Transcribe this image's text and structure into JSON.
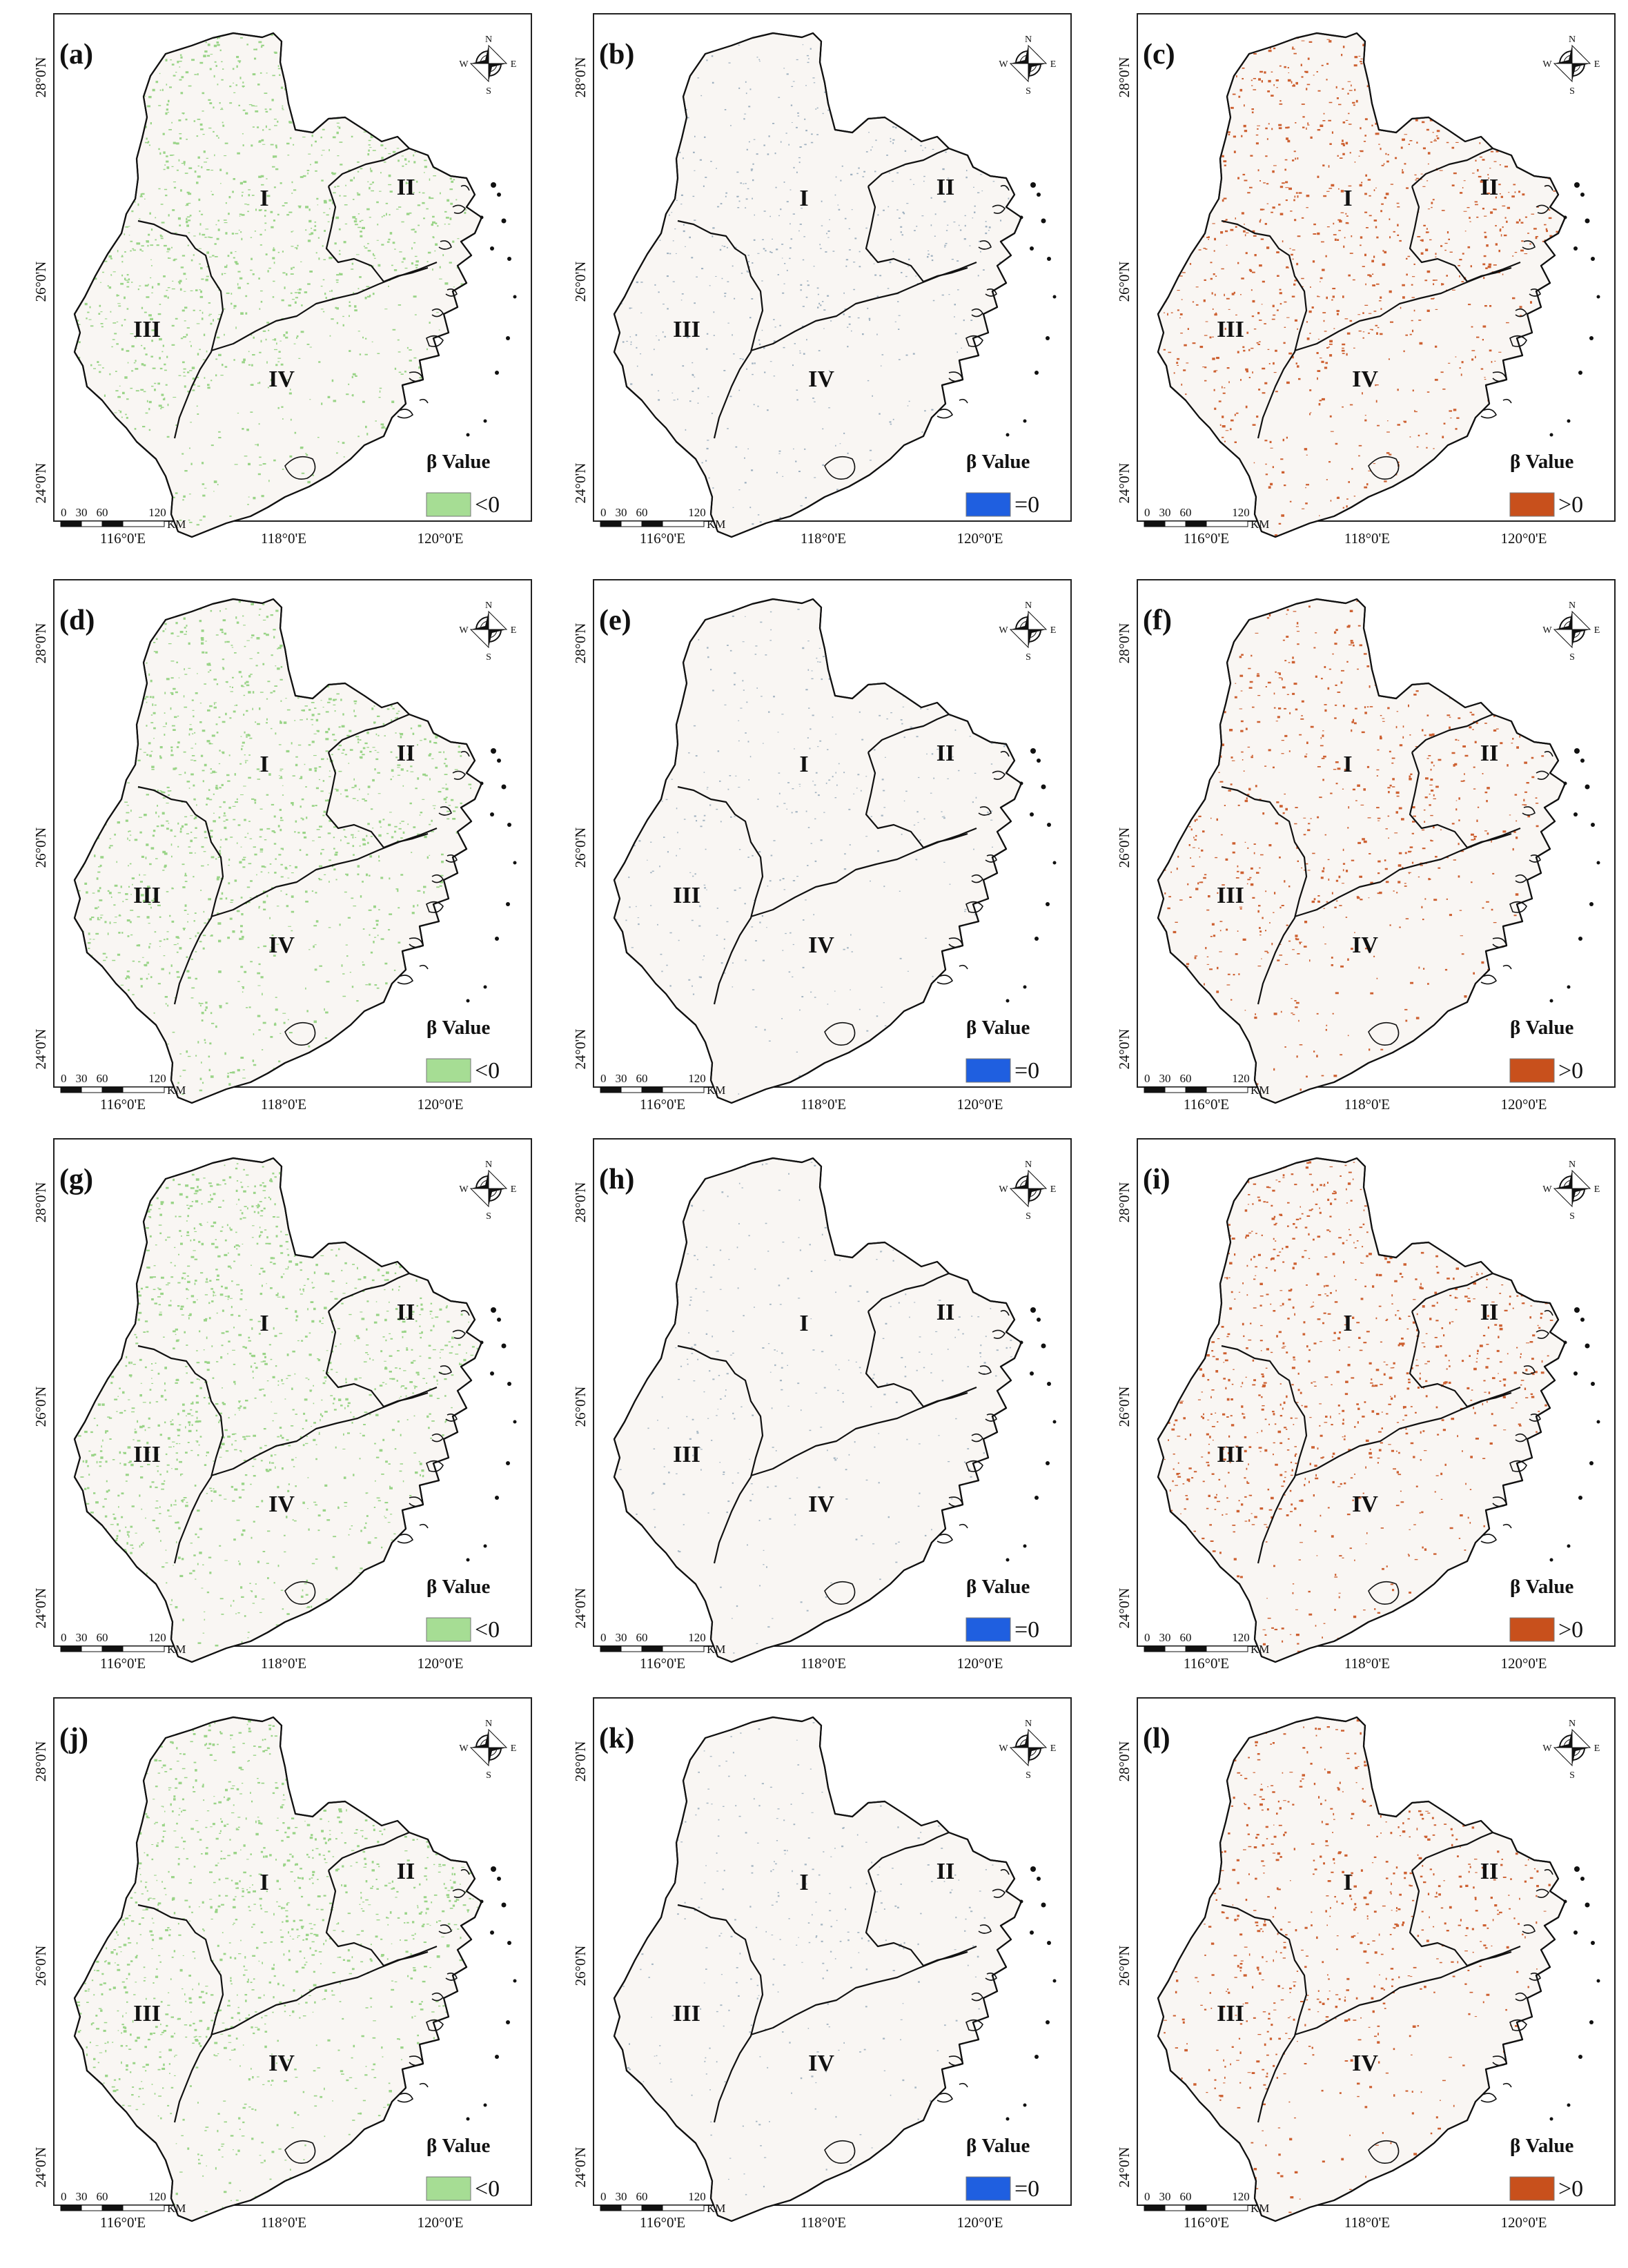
{
  "figure": {
    "panels": [
      {
        "label": "(a)",
        "category": "<0",
        "legend_color": "#a6dd94",
        "texture_color": "#8fd07c",
        "density": 0.62,
        "sign": "negative"
      },
      {
        "label": "(b)",
        "category": "=0",
        "legend_color": "#1f5fe0",
        "texture_color": "#7f98ad",
        "density": 0.3,
        "sign": "zero"
      },
      {
        "label": "(c)",
        "category": ">0",
        "legend_color": "#c8501c",
        "texture_color": "#c8501c",
        "density": 0.48,
        "sign": "positive"
      },
      {
        "label": "(d)",
        "category": "<0",
        "legend_color": "#a6dd94",
        "texture_color": "#8fd07c",
        "density": 0.66,
        "sign": "negative"
      },
      {
        "label": "(e)",
        "category": "=0",
        "legend_color": "#1f5fe0",
        "texture_color": "#8aa0b3",
        "density": 0.18,
        "sign": "zero"
      },
      {
        "label": "(f)",
        "category": ">0",
        "legend_color": "#c8501c",
        "texture_color": "#c8501c",
        "density": 0.34,
        "sign": "positive"
      },
      {
        "label": "(g)",
        "category": "<0",
        "legend_color": "#a6dd94",
        "texture_color": "#8fd07c",
        "density": 0.64,
        "sign": "negative"
      },
      {
        "label": "(h)",
        "category": "=0",
        "legend_color": "#1f5fe0",
        "texture_color": "#8aa0b3",
        "density": 0.16,
        "sign": "zero"
      },
      {
        "label": "(i)",
        "category": ">0",
        "legend_color": "#c8501c",
        "texture_color": "#c8501c",
        "density": 0.46,
        "sign": "positive"
      },
      {
        "label": "(j)",
        "category": "<0",
        "legend_color": "#a6dd94",
        "texture_color": "#8fd07c",
        "density": 0.6,
        "sign": "negative"
      },
      {
        "label": "(k)",
        "category": "=0",
        "legend_color": "#1f5fe0",
        "texture_color": "#8aa0b3",
        "density": 0.16,
        "sign": "zero"
      },
      {
        "label": "(l)",
        "category": ">0",
        "legend_color": "#c8501c",
        "texture_color": "#c8501c",
        "density": 0.36,
        "sign": "positive"
      }
    ],
    "legend_title": "β Value",
    "regions": [
      "I",
      "II",
      "III",
      "IV"
    ],
    "lat_labels": [
      "28°0'N",
      "26°0'N",
      "24°0'N"
    ],
    "lon_labels": [
      "116°0'E",
      "118°0'E",
      "120°0'E"
    ],
    "scale": {
      "ticks": [
        "0",
        "30",
        "60",
        "120"
      ],
      "unit": "KM"
    },
    "compass": {
      "n": "N",
      "s": "S",
      "e": "E",
      "w": "W"
    },
    "colors": {
      "map_background": "#f9f6f3",
      "outline": "#111111"
    }
  }
}
